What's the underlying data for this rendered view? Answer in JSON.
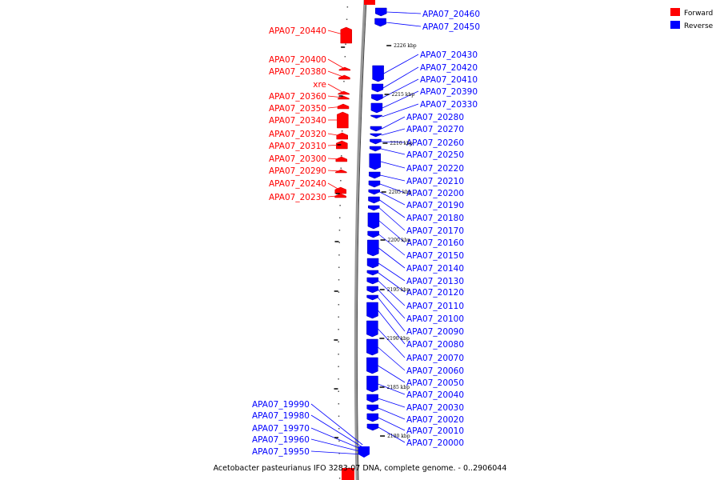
{
  "caption": "Acetobacter pasteurianus IFO 3283-07 DNA, complete genome. - 0..2906044",
  "legend": [
    {
      "label": "Forward",
      "color": "#ff0000"
    },
    {
      "label": "Reverse",
      "color": "#0000ff"
    }
  ],
  "colors": {
    "forward": "#ff0000",
    "reverse": "#0000ff",
    "backbone": "#888888"
  },
  "ticks": [
    "2226 kbp",
    "2215 kbp",
    "2210 kbp",
    "2205 kbp",
    "2200 kbp",
    "2195 kbp",
    "2190 kbp",
    "2185 kbp",
    "2180 kbp"
  ],
  "forward_genes": [
    "APA07_20440",
    "APA07_20400",
    "APA07_20380",
    "xre",
    "APA07_20360",
    "APA07_20350",
    "APA07_20340",
    "APA07_20320",
    "APA07_20310",
    "APA07_20300",
    "APA07_20290",
    "APA07_20240",
    "APA07_20230"
  ],
  "reverse_genes": [
    "APA07_20460",
    "APA07_20450",
    "APA07_20430",
    "APA07_20420",
    "APA07_20410",
    "APA07_20390",
    "APA07_20330",
    "APA07_20280",
    "APA07_20270",
    "APA07_20260",
    "APA07_20250",
    "APA07_20220",
    "APA07_20210",
    "APA07_20200",
    "APA07_20190",
    "APA07_20180",
    "APA07_20170",
    "APA07_20160",
    "APA07_20150",
    "APA07_20140",
    "APA07_20130",
    "APA07_20120",
    "APA07_20110",
    "APA07_20100",
    "APA07_20090",
    "APA07_20080",
    "APA07_20070",
    "APA07_20060",
    "APA07_20050",
    "APA07_20040",
    "APA07_20030",
    "APA07_20020",
    "APA07_20010",
    "APA07_20000"
  ],
  "reverse_genes_left": [
    "APA07_19990",
    "APA07_19980",
    "APA07_19970",
    "APA07_19960",
    "APA07_19950"
  ]
}
